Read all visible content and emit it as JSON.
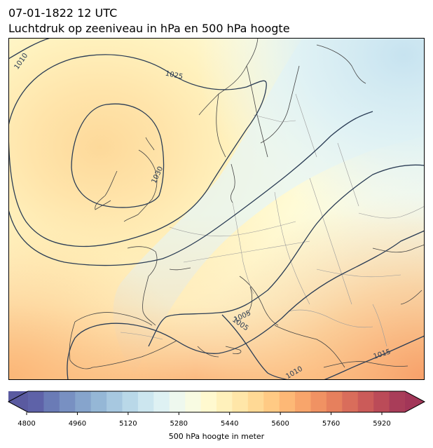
{
  "header": {
    "datetime": "07-01-1822 12 UTC",
    "subtitle": "Luchtdruk op zeeniveau in hPa en 500 hPa hoogte"
  },
  "map": {
    "isobar_labels": [
      "1010",
      "1025",
      "1030",
      "1005",
      "1005",
      "1010",
      "1015"
    ],
    "colors": {
      "isobar": "#2b3d55",
      "coast": "#444444",
      "border": "#9a9a9a"
    }
  },
  "colorbar": {
    "label": "500 hPa hoogte in meter",
    "ticks": [
      "4800",
      "4960",
      "5120",
      "5280",
      "5440",
      "5600",
      "5760",
      "5920"
    ],
    "colors": [
      "#5e62a8",
      "#6a7bb6",
      "#7890c2",
      "#86a4cc",
      "#95b7d6",
      "#a7c8e0",
      "#b9d8e8",
      "#cce6ef",
      "#def1f3",
      "#eef8ee",
      "#f8fbe2",
      "#fff9cf",
      "#fff1bb",
      "#ffe6a8",
      "#ffd995",
      "#ffca84",
      "#fdb876",
      "#f8a56b",
      "#f09263",
      "#e6805d",
      "#d96d5b",
      "#cb5b59",
      "#bb4b58",
      "#a93d59"
    ]
  }
}
